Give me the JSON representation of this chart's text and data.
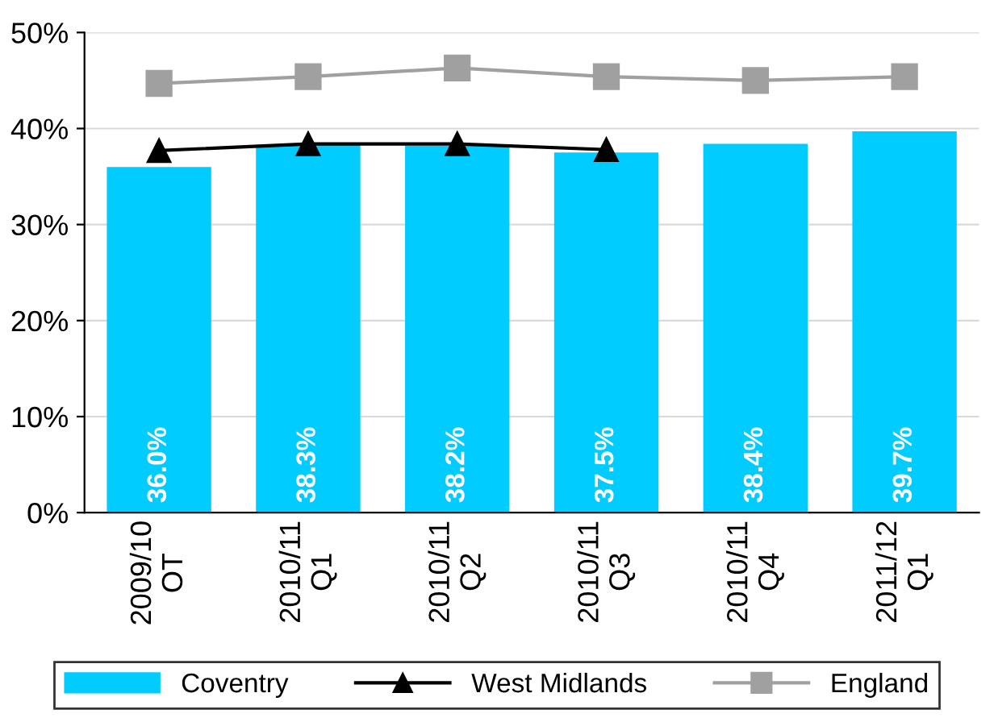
{
  "chart_data": {
    "type": "bar",
    "categories": [
      "2009/10\nOT",
      "2010/11\nQ1",
      "2010/11\nQ2",
      "2010/11\nQ3",
      "2010/11\nQ4",
      "2011/12\nQ1"
    ],
    "series": [
      {
        "name": "Coventry",
        "color": "#00ccff",
        "values": [
          36.0,
          38.3,
          38.2,
          37.5,
          38.4,
          39.7
        ],
        "value_labels": [
          "36.0%",
          "38.3%",
          "38.2%",
          "37.5%",
          "38.4%",
          "39.7%"
        ]
      },
      {
        "name": "West Midlands",
        "type": "line",
        "color": "#000000",
        "marker": "triangle",
        "values": [
          37.7,
          38.4,
          38.4,
          37.8,
          null,
          null
        ]
      },
      {
        "name": "England",
        "type": "line",
        "color": "#a0a0a0",
        "marker": "square",
        "values": [
          44.7,
          45.4,
          46.3,
          45.4,
          45.0,
          45.4
        ]
      }
    ],
    "ylim": [
      0,
      50
    ],
    "yticks": [
      {
        "value": 0,
        "label": "0%"
      },
      {
        "value": 10,
        "label": "10%"
      },
      {
        "value": 20,
        "label": "20%"
      },
      {
        "value": 30,
        "label": "30%"
      },
      {
        "value": 40,
        "label": "40%"
      },
      {
        "value": 50,
        "label": "50%"
      }
    ],
    "grid": "y",
    "legend": "bottom"
  }
}
